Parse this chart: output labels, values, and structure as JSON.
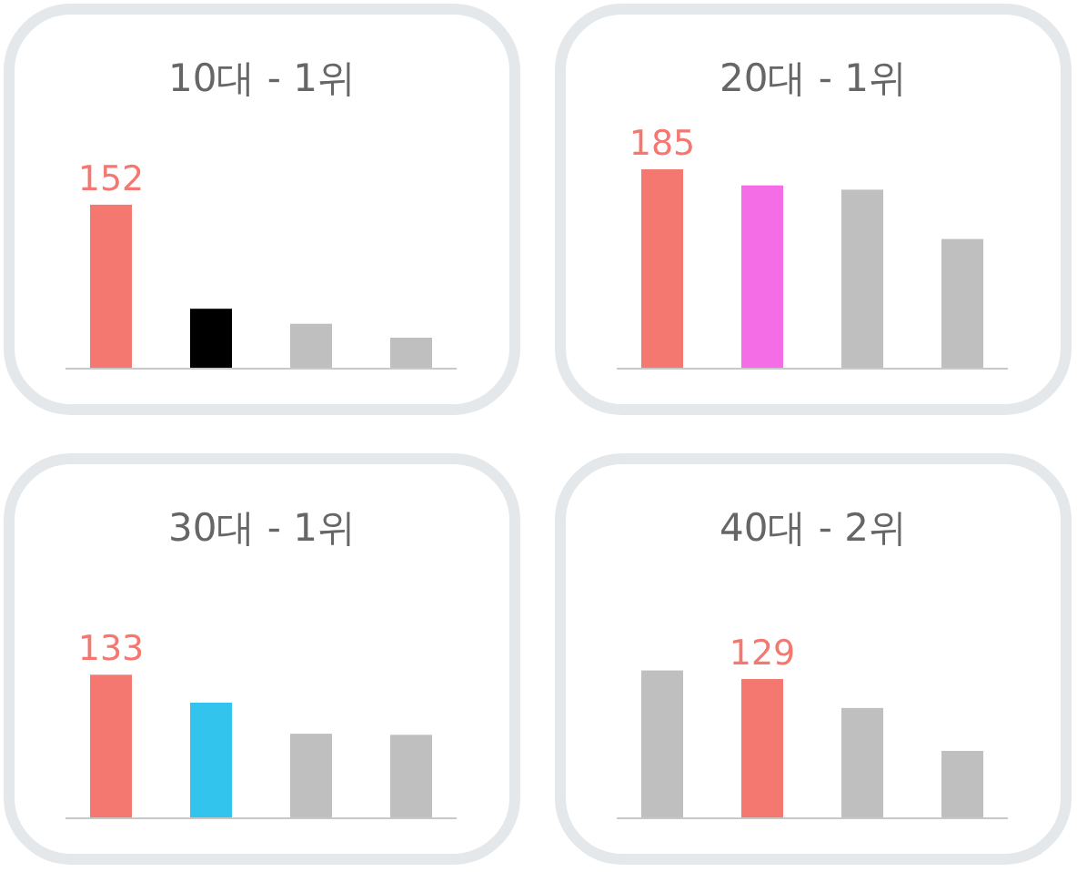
{
  "chart_data": [
    {
      "type": "bar",
      "title": "10대 - 1위",
      "categories": [
        null,
        null,
        null,
        null
      ],
      "values": [
        152,
        55,
        41,
        28
      ],
      "colors": [
        "#f47870",
        "#000000",
        "#bfbfbf",
        "#bfbfbf"
      ],
      "value_labels": [
        "152",
        null,
        null,
        null
      ]
    },
    {
      "type": "bar",
      "title": "20대 - 1위",
      "categories": [
        null,
        null,
        null,
        null
      ],
      "values": [
        185,
        170,
        166,
        120
      ],
      "colors": [
        "#f47870",
        "#f46de6",
        "#bfbfbf",
        "#bfbfbf"
      ],
      "value_labels": [
        "185",
        null,
        null,
        null
      ]
    },
    {
      "type": "bar",
      "title": "30대 - 1위",
      "categories": [
        null,
        null,
        null,
        null
      ],
      "values": [
        133,
        107,
        78,
        77
      ],
      "colors": [
        "#f47870",
        "#33c4ee",
        "#bfbfbf",
        "#bfbfbf"
      ],
      "value_labels": [
        "133",
        null,
        null,
        null
      ]
    },
    {
      "type": "bar",
      "title": "40대 - 2위",
      "categories": [
        null,
        null,
        null,
        null
      ],
      "values": [
        137,
        129,
        102,
        62
      ],
      "colors": [
        "#bfbfbf",
        "#f47870",
        "#bfbfbf",
        "#bfbfbf"
      ],
      "value_labels": [
        null,
        "129",
        null,
        null
      ]
    }
  ]
}
